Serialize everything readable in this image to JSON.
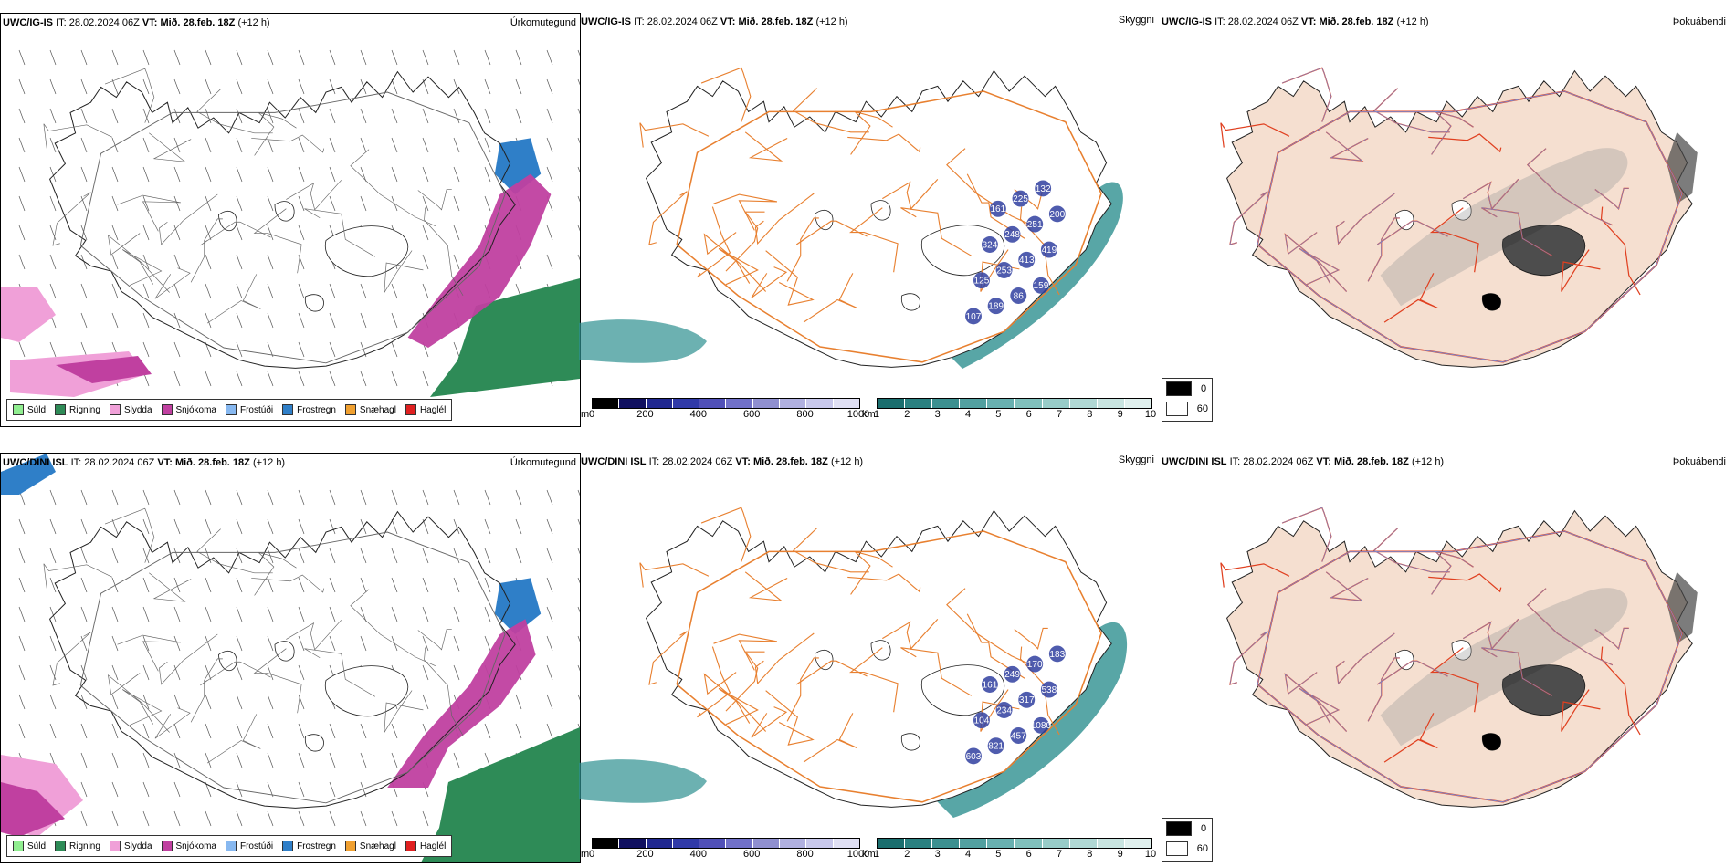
{
  "rows": [
    {
      "model": "UWC/IG-IS",
      "it_label": "IT:",
      "it_value": "28.02.2024 06Z",
      "vt_label": "VT:",
      "vt_value": "Mið. 28.feb. 18Z",
      "lead": "(+12 h)",
      "cloud_labels": [
        "107",
        "189",
        "86",
        "159",
        "125",
        "253",
        "413",
        "419",
        "324",
        "248",
        "251",
        "200",
        "161",
        "225",
        "132"
      ]
    },
    {
      "model": "UWC/DINI ISL",
      "it_label": "IT:",
      "it_value": "28.02.2024 06Z",
      "vt_label": "VT:",
      "vt_value": "Mið. 28.feb. 18Z",
      "lead": "(+12 h)",
      "cloud_labels": [
        "603",
        "821",
        "457",
        "1080",
        "104",
        "234",
        "317",
        "538",
        "161",
        "249",
        "170",
        "183"
      ]
    }
  ],
  "panel_titles": {
    "precip": "Úrkomutegund",
    "visibility": "Skyggni",
    "fog": "Þokuábendi"
  },
  "precip_legend": [
    {
      "label": "Súld",
      "color": "#90ee90"
    },
    {
      "label": "Rigning",
      "color": "#2e8b57"
    },
    {
      "label": "Slydda",
      "color": "#f0a0d8"
    },
    {
      "label": "Snjókoma",
      "color": "#c040a0"
    },
    {
      "label": "Frostúði",
      "color": "#87b8f0"
    },
    {
      "label": "Frostregn",
      "color": "#2f7fc8"
    },
    {
      "label": "Snæhagl",
      "color": "#f0a030"
    },
    {
      "label": "Haglél",
      "color": "#e02020"
    }
  ],
  "cloudbase_scale": {
    "unit": "m",
    "ticks": [
      "0",
      "200",
      "400",
      "600",
      "800",
      "1000"
    ],
    "colors": [
      "#000000",
      "#101060",
      "#202890",
      "#303aa8",
      "#5050b8",
      "#7070c8",
      "#9090d0",
      "#b0b0e0",
      "#c8c8ec",
      "#e0e0f4"
    ]
  },
  "visibility_scale": {
    "unit": "km",
    "ticks": [
      "1",
      "2",
      "3",
      "4",
      "5",
      "6",
      "7",
      "8",
      "9",
      "10"
    ],
    "colors": [
      "#1a6e6e",
      "#2a8080",
      "#3c9090",
      "#52a0a0",
      "#68b0b0",
      "#80c0bc",
      "#98ccc8",
      "#b0d8d4",
      "#c8e4e0",
      "#e0f0ee"
    ]
  },
  "fog_scale": {
    "items": [
      {
        "label": "0",
        "color": "#000000"
      },
      {
        "label": "60",
        "color": "#ffffff"
      }
    ]
  },
  "colors": {
    "sea_teal": "#2e9090",
    "snow_magenta": "#c040a0",
    "rain_green": "#2e8b57",
    "freezing_blue": "#2f7fc8",
    "sleet_pink": "#f0a0d8",
    "road_orange": "#e88030",
    "land_beige": "#f5dfd0",
    "road_red": "#e04020",
    "river_blue": "#7090e0",
    "cloud_blue": "#3040a0"
  }
}
